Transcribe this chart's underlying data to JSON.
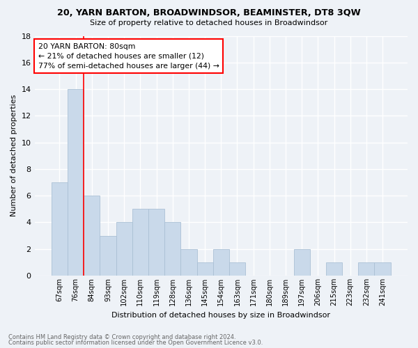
{
  "title1": "20, YARN BARTON, BROADWINDSOR, BEAMINSTER, DT8 3QW",
  "title2": "Size of property relative to detached houses in Broadwindsor",
  "xlabel": "Distribution of detached houses by size in Broadwindsor",
  "ylabel": "Number of detached properties",
  "footnote1": "Contains HM Land Registry data © Crown copyright and database right 2024.",
  "footnote2": "Contains public sector information licensed under the Open Government Licence v3.0.",
  "categories": [
    "67sqm",
    "76sqm",
    "84sqm",
    "93sqm",
    "102sqm",
    "110sqm",
    "119sqm",
    "128sqm",
    "136sqm",
    "145sqm",
    "154sqm",
    "163sqm",
    "171sqm",
    "180sqm",
    "189sqm",
    "197sqm",
    "206sqm",
    "215sqm",
    "223sqm",
    "232sqm",
    "241sqm"
  ],
  "values": [
    7,
    14,
    6,
    3,
    4,
    5,
    5,
    4,
    2,
    1,
    2,
    1,
    0,
    0,
    0,
    2,
    0,
    1,
    0,
    1,
    1
  ],
  "bar_color": "#c9d9ea",
  "bar_edge_color": "#aac0d5",
  "red_line_x": 1.5,
  "annotation_text": "20 YARN BARTON: 80sqm\n← 21% of detached houses are smaller (12)\n77% of semi-detached houses are larger (44) →",
  "annotation_box_color": "white",
  "annotation_box_edge": "red",
  "bg_color": "#eef2f7",
  "grid_color": "white",
  "ylim": [
    0,
    18
  ],
  "yticks": [
    0,
    2,
    4,
    6,
    8,
    10,
    12,
    14,
    16,
    18
  ]
}
